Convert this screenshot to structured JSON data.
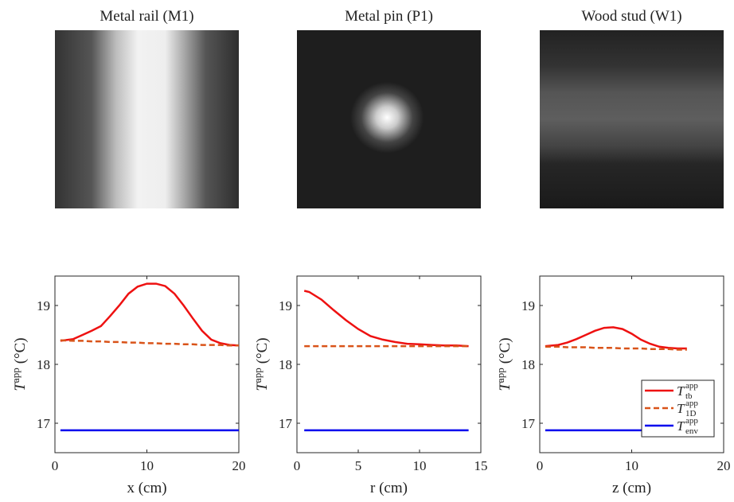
{
  "chart_data": [
    {
      "type": "line",
      "title": "Metal rail (M1)",
      "xlabel": "x (cm)",
      "ylabel": {
        "base": "T",
        "sup": "app",
        "unit": "(°C)"
      },
      "x": [
        0.6,
        2,
        3,
        4,
        5,
        6,
        7,
        8,
        9,
        10,
        11,
        12,
        13,
        14,
        15,
        16,
        17,
        18,
        19,
        20
      ],
      "series": [
        {
          "color": "#ee1111",
          "style": "solid",
          "values": [
            18.4,
            18.43,
            18.5,
            18.57,
            18.65,
            18.82,
            19.0,
            19.2,
            19.32,
            19.37,
            19.37,
            19.33,
            19.2,
            19.0,
            18.78,
            18.57,
            18.42,
            18.36,
            18.33,
            18.32
          ]
        },
        {
          "color": "#d95319",
          "style": "dashed",
          "values": [
            18.41,
            18.4,
            18.4,
            18.39,
            18.39,
            18.38,
            18.38,
            18.37,
            18.37,
            18.36,
            18.36,
            18.35,
            18.35,
            18.34,
            18.34,
            18.33,
            18.33,
            18.33,
            18.32,
            18.32
          ]
        },
        {
          "color": "#0000ee",
          "style": "solid",
          "values": [
            16.88,
            16.88,
            16.88,
            16.88,
            16.88,
            16.88,
            16.88,
            16.88,
            16.88,
            16.88,
            16.88,
            16.88,
            16.88,
            16.88,
            16.88,
            16.88,
            16.88,
            16.88,
            16.88,
            16.88
          ]
        }
      ],
      "xlim": [
        0,
        20
      ],
      "ylim": [
        16.5,
        19.5
      ],
      "xticks": [
        0,
        10,
        20
      ],
      "yticks": [
        17,
        18,
        19
      ]
    },
    {
      "type": "line",
      "title": "Metal pin (P1)",
      "xlabel": "r (cm)",
      "ylabel": {
        "base": "T",
        "sup": "app",
        "unit": "(°C)"
      },
      "x": [
        0.6,
        1,
        2,
        3,
        4,
        5,
        6,
        7,
        8,
        9,
        10,
        11,
        12,
        13,
        14
      ],
      "series": [
        {
          "color": "#ee1111",
          "style": "solid",
          "values": [
            19.25,
            19.23,
            19.1,
            18.92,
            18.75,
            18.6,
            18.48,
            18.42,
            18.38,
            18.35,
            18.34,
            18.33,
            18.32,
            18.32,
            18.31
          ]
        },
        {
          "color": "#d95319",
          "style": "dashed",
          "values": [
            18.31,
            18.31,
            18.31,
            18.31,
            18.31,
            18.31,
            18.31,
            18.31,
            18.31,
            18.31,
            18.31,
            18.31,
            18.31,
            18.31,
            18.31
          ]
        },
        {
          "color": "#0000ee",
          "style": "solid",
          "values": [
            16.88,
            16.88,
            16.88,
            16.88,
            16.88,
            16.88,
            16.88,
            16.88,
            16.88,
            16.88,
            16.88,
            16.88,
            16.88,
            16.88,
            16.88
          ]
        }
      ],
      "xlim": [
        0,
        15
      ],
      "ylim": [
        16.5,
        19.5
      ],
      "xticks": [
        0,
        5,
        10,
        15
      ],
      "yticks": [
        17,
        18,
        19
      ]
    },
    {
      "type": "line",
      "title": "Wood stud (W1)",
      "xlabel": "z (cm)",
      "ylabel": {
        "base": "T",
        "sup": "app",
        "unit": "(°C)"
      },
      "x": [
        0.6,
        2,
        3,
        4,
        5,
        6,
        7,
        8,
        9,
        10,
        11,
        12,
        13,
        14,
        15,
        16
      ],
      "series": [
        {
          "name": "T",
          "name_sup": "app",
          "name_sub": "tb",
          "color": "#ee1111",
          "style": "solid",
          "values": [
            18.31,
            18.33,
            18.37,
            18.43,
            18.5,
            18.57,
            18.62,
            18.63,
            18.6,
            18.52,
            18.42,
            18.35,
            18.3,
            18.28,
            18.27,
            18.27
          ]
        },
        {
          "name": "T",
          "name_sup": "app",
          "name_sub": "1D",
          "color": "#d95319",
          "style": "dashed",
          "values": [
            18.3,
            18.3,
            18.29,
            18.29,
            18.29,
            18.28,
            18.28,
            18.28,
            18.27,
            18.27,
            18.27,
            18.26,
            18.26,
            18.26,
            18.25,
            18.25
          ]
        },
        {
          "name": "T",
          "name_sup": "app",
          "name_sub": "env",
          "color": "#0000ee",
          "style": "solid",
          "values": [
            16.88,
            16.88,
            16.88,
            16.88,
            16.88,
            16.88,
            16.88,
            16.88,
            16.88,
            16.88,
            16.88,
            16.88,
            16.88,
            16.88,
            16.88,
            16.88
          ]
        }
      ],
      "xlim": [
        0,
        20
      ],
      "ylim": [
        16.5,
        19.5
      ],
      "xticks": [
        0,
        10,
        20
      ],
      "yticks": [
        17,
        18,
        19
      ],
      "legend": "lower right"
    }
  ]
}
